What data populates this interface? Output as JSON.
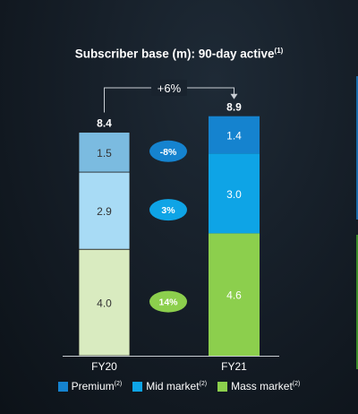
{
  "chart_data": {
    "type": "bar",
    "stacked": true,
    "title": "Subscriber base (m): 90-day active",
    "title_note": "(1)",
    "categories": [
      "FY20",
      "FY21"
    ],
    "totals": [
      "8.4",
      "8.9"
    ],
    "series": [
      {
        "name": "Premium",
        "note": "(2)",
        "values": [
          1.5,
          1.4
        ],
        "labels": [
          "1.5",
          "1.4"
        ],
        "colors": [
          "#7bbbe0",
          "#1583cf"
        ],
        "change": "-8%",
        "change_color": "#1583cf"
      },
      {
        "name": "Mid market",
        "note": "(2)",
        "values": [
          2.9,
          3.0
        ],
        "labels": [
          "2.9",
          "3.0"
        ],
        "colors": [
          "#a8dbf5",
          "#0ea4e6"
        ],
        "change": "3%",
        "change_color": "#0ea4e6"
      },
      {
        "name": "Mass market",
        "note": "(2)",
        "values": [
          4.0,
          4.6
        ],
        "labels": [
          "4.0",
          "4.6"
        ],
        "colors": [
          "#d9ebc0",
          "#8ccf4d"
        ],
        "change": "14%",
        "change_color": "#8ccf4d"
      }
    ],
    "growth_label": "+6%",
    "legend_colors": [
      "#1583cf",
      "#0ea4e6",
      "#8ccf4d"
    ]
  }
}
